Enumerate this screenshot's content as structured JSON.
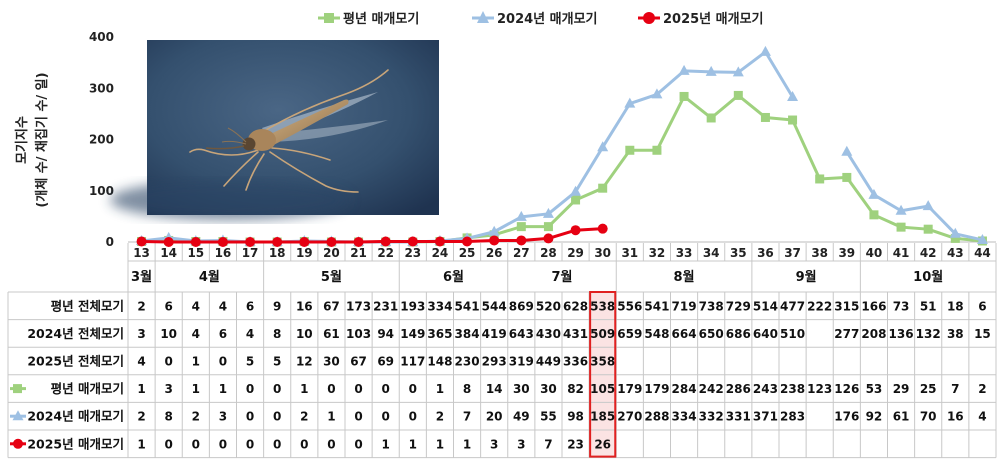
{
  "chart_data": {
    "type": "line",
    "ylabel_line1": "모기지수",
    "ylabel_line2": "(개체 수/ 채집기 수/ 일)",
    "ylim": [
      0,
      400
    ],
    "yticks": [
      "0",
      "100",
      "200",
      "300",
      "400"
    ],
    "weeks": [
      13,
      14,
      15,
      16,
      17,
      18,
      19,
      20,
      21,
      22,
      23,
      24,
      25,
      26,
      27,
      28,
      29,
      30,
      31,
      32,
      33,
      34,
      35,
      36,
      37,
      38,
      39,
      40,
      41,
      42,
      43,
      44
    ],
    "months": [
      {
        "label": "3월",
        "start": 13,
        "end": 13
      },
      {
        "label": "4월",
        "start": 14,
        "end": 17
      },
      {
        "label": "5월",
        "start": 18,
        "end": 22
      },
      {
        "label": "6월",
        "start": 23,
        "end": 26
      },
      {
        "label": "7월",
        "start": 27,
        "end": 30
      },
      {
        "label": "8월",
        "start": 31,
        "end": 35
      },
      {
        "label": "9월",
        "start": 36,
        "end": 39
      },
      {
        "label": "10월",
        "start": 40,
        "end": 44
      }
    ],
    "legend_position": "top-center",
    "highlight_week": 30,
    "highlight_color": "#e02020",
    "series": [
      {
        "name": "평년 매개모기",
        "color": "#9fd17e",
        "marker": "square",
        "values": [
          1,
          3,
          1,
          1,
          0,
          0,
          1,
          0,
          0,
          0,
          0,
          1,
          8,
          14,
          30,
          30,
          82,
          105,
          179,
          179,
          284,
          242,
          286,
          243,
          238,
          123,
          126,
          53,
          29,
          25,
          7,
          2
        ]
      },
      {
        "name": "2024년 매개모기",
        "color": "#9ec0e3",
        "marker": "triangle",
        "values": [
          2,
          8,
          2,
          3,
          0,
          0,
          2,
          1,
          0,
          0,
          0,
          2,
          7,
          20,
          49,
          55,
          98,
          185,
          270,
          288,
          334,
          332,
          331,
          371,
          283,
          null,
          176,
          92,
          61,
          70,
          16,
          4
        ]
      },
      {
        "name": "2025년 매개모기",
        "color": "#e60012",
        "marker": "circle",
        "values": [
          1,
          0,
          0,
          0,
          0,
          0,
          0,
          0,
          0,
          1,
          1,
          1,
          1,
          3,
          3,
          7,
          23,
          26,
          null,
          null,
          null,
          null,
          null,
          null,
          null,
          null,
          null,
          null,
          null,
          null,
          null,
          null
        ]
      }
    ],
    "table_rows": [
      {
        "label": "평년 전체모기",
        "legend": null,
        "cells": [
          "2",
          "6",
          "4",
          "4",
          "6",
          "9",
          "16",
          "67",
          "173",
          "231",
          "193",
          "334",
          "541",
          "544",
          "869",
          "520",
          "628",
          "538",
          "556",
          "541",
          "719",
          "738",
          "729",
          "514",
          "477",
          "222",
          "315",
          "166",
          "73",
          "51",
          "18",
          "6"
        ]
      },
      {
        "label": "2024년 전체모기",
        "legend": null,
        "cells": [
          "3",
          "10",
          "4",
          "6",
          "4",
          "8",
          "10",
          "61",
          "103",
          "94",
          "149",
          "365",
          "384",
          "419",
          "643",
          "430",
          "431",
          "509",
          "659",
          "548",
          "664",
          "650",
          "686",
          "640",
          "510",
          "",
          "277",
          "208",
          "136",
          "132",
          "38",
          "15"
        ]
      },
      {
        "label": "2025년 전체모기",
        "legend": null,
        "cells": [
          "4",
          "0",
          "1",
          "0",
          "5",
          "5",
          "12",
          "30",
          "67",
          "69",
          "117",
          "148",
          "230",
          "293",
          "319",
          "449",
          "336",
          "358",
          "",
          "",
          "",
          "",
          "",
          "",
          "",
          "",
          "",
          "",
          "",
          "",
          "",
          ""
        ]
      },
      {
        "label": "평년 매개모기",
        "legend": "square",
        "cells": [
          "1",
          "3",
          "1",
          "1",
          "0",
          "0",
          "1",
          "0",
          "0",
          "0",
          "0",
          "1",
          "8",
          "14",
          "30",
          "30",
          "82",
          "105",
          "179",
          "179",
          "284",
          "242",
          "286",
          "243",
          "238",
          "123",
          "126",
          "53",
          "29",
          "25",
          "7",
          "2"
        ]
      },
      {
        "label": "2024년 매개모기",
        "legend": "triangle",
        "cells": [
          "2",
          "8",
          "2",
          "3",
          "0",
          "0",
          "2",
          "1",
          "0",
          "0",
          "0",
          "2",
          "7",
          "20",
          "49",
          "55",
          "98",
          "185",
          "270",
          "288",
          "334",
          "332",
          "331",
          "371",
          "283",
          "",
          "176",
          "92",
          "61",
          "70",
          "16",
          "4"
        ]
      },
      {
        "label": "2025년 매개모기",
        "legend": "circle",
        "cells": [
          "1",
          "0",
          "0",
          "0",
          "0",
          "0",
          "0",
          "0",
          "0",
          "1",
          "1",
          "1",
          "1",
          "3",
          "3",
          "7",
          "23",
          "26",
          "",
          "",
          "",
          "",
          "",
          "",
          "",
          "",
          "",
          "",
          "",
          "",
          "",
          ""
        ]
      }
    ]
  },
  "photo": {
    "subject": "mosquito-photo"
  }
}
